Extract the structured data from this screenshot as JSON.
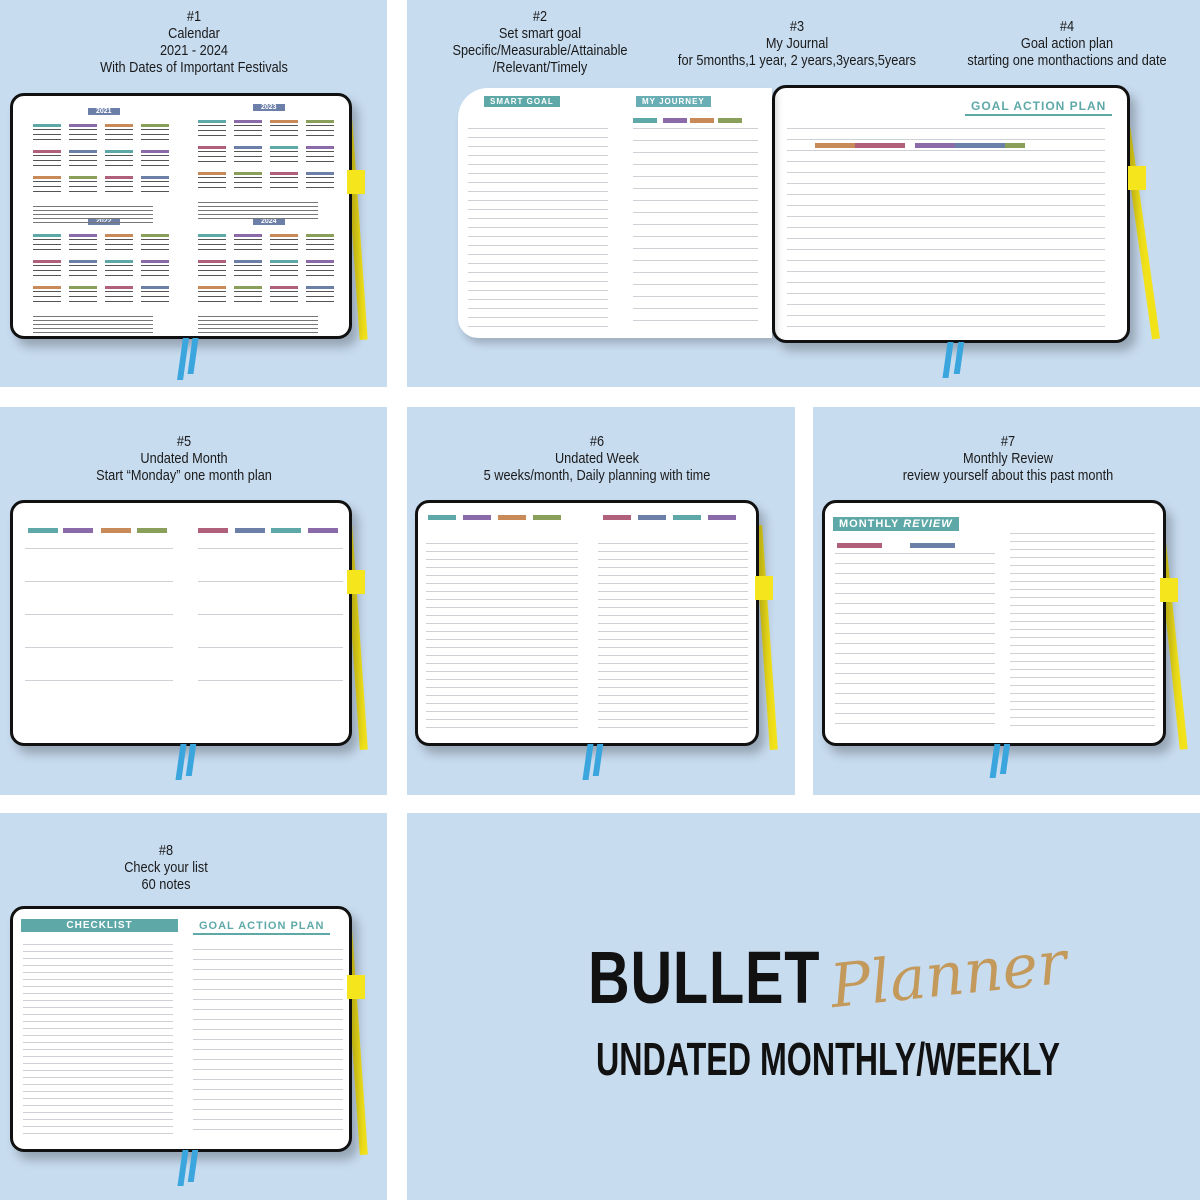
{
  "panels": [
    {
      "number": "#1",
      "lines": [
        "Calendar",
        "2021 - 2024",
        "With Dates of Important Festivals"
      ]
    },
    {
      "number": "#2",
      "lines": [
        "Set smart goal",
        "Specific/Measurable/Attainable",
        "/Relevant/Timely"
      ]
    },
    {
      "number": "#3",
      "lines": [
        "My Journal",
        "for 5months,1 year, 2 years,3years,5years"
      ]
    },
    {
      "number": "#4",
      "lines": [
        "Goal action plan",
        "starting one monthactions and date"
      ]
    },
    {
      "number": "#5",
      "lines": [
        "Undated Month",
        "Start “Monday”  one month plan"
      ]
    },
    {
      "number": "#6",
      "lines": [
        "Undated Week",
        "5 weeks/month, Daily planning with time"
      ]
    },
    {
      "number": "#7",
      "lines": [
        "Monthly Review",
        "review yourself about this past month"
      ]
    },
    {
      "number": "#8",
      "lines": [
        "Check your list",
        "60 notes"
      ]
    }
  ],
  "page_labels": {
    "calendar_years": [
      "2021",
      "2023",
      "2022",
      "2024"
    ],
    "smart_goal": "SMART GOAL",
    "my_journey": "MY JOURNEY",
    "goal_action_plan": "GOAL ACTION PLAN",
    "monthly": "MONTHLY",
    "review": "REVIEW",
    "checklist": "CHECKLIST",
    "goal_action_plan_2": "GOAL ACTION PLAN"
  },
  "brand": {
    "title": "BULLET",
    "script": "Planner",
    "subtitle": "UNDATED MONTHLY/WEEKLY"
  }
}
